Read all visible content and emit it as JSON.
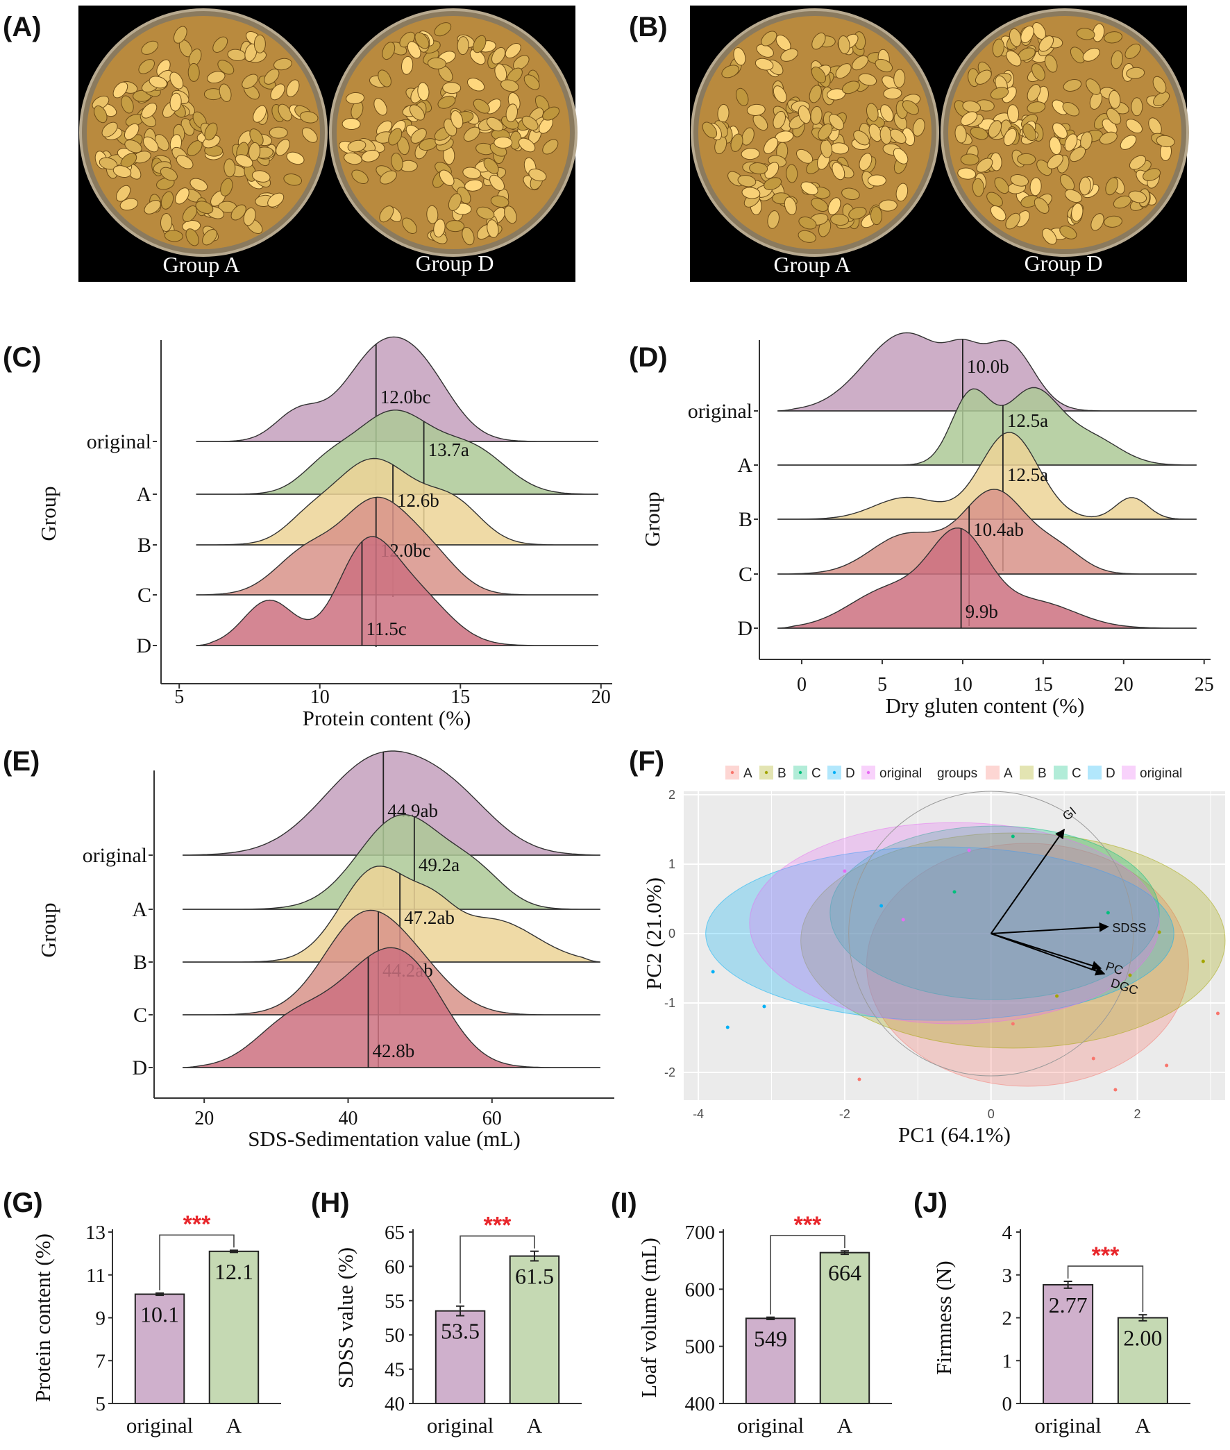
{
  "panel_labels": [
    "(A)",
    "(B)",
    "(C)",
    "(D)",
    "(E)",
    "(F)",
    "(G)",
    "(H)",
    "(I)",
    "(J)"
  ],
  "photos": [
    {
      "left_label": "Group A",
      "right_label": "Group D"
    },
    {
      "left_label": "Group A",
      "right_label": "Group D"
    }
  ],
  "colors": {
    "original": "#c4a0bd",
    "A": "#adc997",
    "B": "#ecd497",
    "C": "#d8938a",
    "D": "#cd7180",
    "pca_A": "#f8766d",
    "pca_B": "#a3a500",
    "pca_C": "#00bf7d",
    "pca_D": "#00b0f6",
    "pca_original": "#e76bf3",
    "sig": "#e8262b",
    "bar_original": "#cfb0cc",
    "bar_A": "#c5d9b3"
  },
  "chart_data": [
    {
      "type": "ridgeline",
      "panel": "(C)",
      "xlabel": "Protein content (%)",
      "ylabel": "Group",
      "xlim": [
        4.6,
        20.4
      ],
      "xticks": [
        "5",
        "10",
        "15",
        "20"
      ],
      "groups": [
        "original",
        "A",
        "B",
        "C",
        "D"
      ],
      "medians": [
        12.0,
        13.7,
        12.6,
        12.0,
        11.5
      ],
      "annotations": [
        "12.0bc",
        "13.7a",
        "12.6b",
        "12.0bc",
        "11.5c"
      ],
      "range": [
        5.6,
        19.9
      ],
      "density_peaks": [
        [
          9.2,
          0.35,
          0.6
        ],
        [
          11.8,
          0.9,
          1.1
        ],
        [
          13.6,
          0.55,
          1.1
        ]
      ]
    },
    {
      "type": "ridgeline",
      "panel": "(D)",
      "xlabel": "Dry gluten content (%)",
      "ylabel": "Group",
      "xlim": [
        -2.2,
        25.4
      ],
      "xticks": [
        "0",
        "5",
        "10",
        "15",
        "20",
        "25"
      ],
      "groups": [
        "original",
        "A",
        "B",
        "C",
        "D"
      ],
      "medians": [
        10.0,
        12.5,
        12.5,
        10.4,
        9.9
      ],
      "annotations": [
        "10.0b",
        "12.5a",
        "12.5a",
        "10.4ab",
        "9.9b"
      ],
      "range": [
        -1.5,
        24.5
      ]
    },
    {
      "type": "ridgeline",
      "panel": "(E)",
      "xlabel": "SDS-Sedimentation value (mL)",
      "ylabel": "Group",
      "xlim": [
        14,
        77
      ],
      "xticks": [
        "20",
        "40",
        "60"
      ],
      "groups": [
        "original",
        "A",
        "B",
        "C",
        "D"
      ],
      "medians": [
        44.9,
        49.2,
        47.2,
        44.2,
        42.8
      ],
      "annotations": [
        "44.9ab",
        "49.2a",
        "47.2ab",
        "44.2ab",
        "42.8b"
      ],
      "range": [
        17,
        75
      ]
    },
    {
      "type": "scatter",
      "panel": "(F)",
      "xlabel": "PC1 (64.1%)",
      "ylabel": "PC2 (21.0%)",
      "xlim": [
        -4.2,
        3.2
      ],
      "ylim": [
        -2.4,
        2.05
      ],
      "xticks": [
        "-4",
        "-2",
        "0",
        "2"
      ],
      "yticks": [
        "2",
        "1",
        "0",
        "-1",
        "-2"
      ],
      "legend_points": [
        "A",
        "B",
        "C",
        "D",
        "original"
      ],
      "legend_title": "groups",
      "legend_ellipses": [
        "A",
        "B",
        "C",
        "D",
        "original"
      ],
      "loadings": [
        {
          "name": "GI",
          "x": 1.0,
          "y": 1.5
        },
        {
          "name": "SDSS",
          "x": 1.6,
          "y": 0.1
        },
        {
          "name": "PC",
          "x": 1.5,
          "y": -0.5
        },
        {
          "name": "DGC",
          "x": 1.55,
          "y": -0.58
        }
      ],
      "ellipses": [
        {
          "group": "A",
          "cx": 0.5,
          "cy": -0.45,
          "rx": 2.2,
          "ry": 1.75
        },
        {
          "group": "B",
          "cx": 0.3,
          "cy": -0.1,
          "rx": 2.9,
          "ry": 1.55
        },
        {
          "group": "C",
          "cx": 0.05,
          "cy": 0.3,
          "rx": 2.25,
          "ry": 1.25
        },
        {
          "group": "D",
          "cx": -0.7,
          "cy": -0.0,
          "rx": 3.2,
          "ry": 1.25
        },
        {
          "group": "original",
          "cx": -0.5,
          "cy": 0.15,
          "rx": 2.8,
          "ry": 1.45
        }
      ],
      "points": [
        {
          "g": "A",
          "x": 1.7,
          "y": -2.25
        },
        {
          "g": "A",
          "x": 3.1,
          "y": -1.15
        },
        {
          "g": "A",
          "x": -1.8,
          "y": -2.1
        },
        {
          "g": "A",
          "x": 2.4,
          "y": -1.9
        },
        {
          "g": "A",
          "x": 1.4,
          "y": -1.8
        },
        {
          "g": "A",
          "x": 0.3,
          "y": -1.3
        },
        {
          "g": "B",
          "x": 2.9,
          "y": -0.4
        },
        {
          "g": "B",
          "x": 2.3,
          "y": 0.02
        },
        {
          "g": "B",
          "x": 1.9,
          "y": -0.6
        },
        {
          "g": "B",
          "x": 0.9,
          "y": -0.9
        },
        {
          "g": "C",
          "x": 0.3,
          "y": 1.4
        },
        {
          "g": "C",
          "x": 1.6,
          "y": 0.3
        },
        {
          "g": "C",
          "x": -0.5,
          "y": 0.6
        },
        {
          "g": "D",
          "x": -3.8,
          "y": -0.55
        },
        {
          "g": "D",
          "x": -3.1,
          "y": -1.05
        },
        {
          "g": "D",
          "x": -3.6,
          "y": -1.35
        },
        {
          "g": "D",
          "x": -1.5,
          "y": 0.4
        },
        {
          "g": "original",
          "x": -2.0,
          "y": 0.9
        },
        {
          "g": "original",
          "x": -1.2,
          "y": 0.2
        },
        {
          "g": "original",
          "x": -0.3,
          "y": 1.2
        }
      ]
    },
    {
      "type": "bar",
      "panel": "(G)",
      "ylabel": "Protein content (%)",
      "categories": [
        "original",
        "A"
      ],
      "values": [
        10.1,
        12.1
      ],
      "errors": [
        0.05,
        0.05
      ],
      "labels": [
        "10.1",
        "12.1"
      ],
      "ylim": [
        5,
        13
      ],
      "yticks": [
        "5",
        "7",
        "9",
        "11",
        "13"
      ],
      "significance": "***"
    },
    {
      "type": "bar",
      "panel": "(H)",
      "ylabel": "SDSS value (%)",
      "categories": [
        "original",
        "A"
      ],
      "values": [
        53.5,
        61.5
      ],
      "errors": [
        0.7,
        0.7
      ],
      "labels": [
        "53.5",
        "61.5"
      ],
      "ylim": [
        40,
        65
      ],
      "yticks": [
        "40",
        "45",
        "50",
        "55",
        "60",
        "65"
      ],
      "significance": "***"
    },
    {
      "type": "bar",
      "panel": "(I)",
      "ylabel": "Loaf volume (mL)",
      "categories": [
        "original",
        "A"
      ],
      "values": [
        549,
        664
      ],
      "errors": [
        2,
        3
      ],
      "labels": [
        "549",
        "664"
      ],
      "ylim": [
        400,
        700
      ],
      "yticks": [
        "400",
        "500",
        "600",
        "700"
      ],
      "significance": "***"
    },
    {
      "type": "bar",
      "panel": "(J)",
      "ylabel": "Firmness (N)",
      "categories": [
        "original",
        "A"
      ],
      "values": [
        2.77,
        2.0
      ],
      "errors": [
        0.08,
        0.07
      ],
      "labels": [
        "2.77",
        "2.00"
      ],
      "ylim": [
        0,
        4
      ],
      "yticks": [
        "0",
        "1",
        "2",
        "3",
        "4"
      ],
      "significance": "***"
    }
  ]
}
